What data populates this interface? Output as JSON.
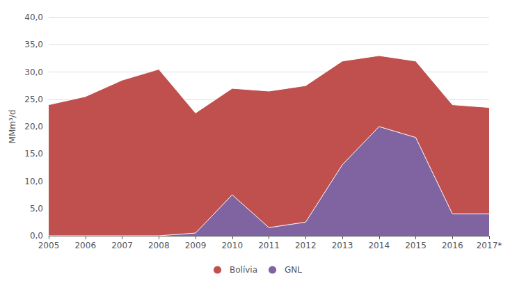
{
  "chart_data": {
    "type": "area",
    "categories": [
      "2005",
      "2006",
      "2007",
      "2008",
      "2009",
      "2010",
      "2011",
      "2012",
      "2013",
      "2014",
      "2015",
      "2016",
      "2017*"
    ],
    "series": [
      {
        "name": "Bolívia",
        "color": "#c0504d",
        "values": [
          24.0,
          25.5,
          28.5,
          30.5,
          22.5,
          27.0,
          26.5,
          27.5,
          32.0,
          33.0,
          32.0,
          24.0,
          23.5
        ]
      },
      {
        "name": "GNL",
        "color": "#8064a2",
        "values": [
          0.0,
          0.0,
          0.0,
          0.0,
          0.5,
          7.5,
          1.5,
          2.5,
          13.0,
          20.0,
          18.0,
          4.0,
          4.0
        ]
      }
    ],
    "ylabel": "MMm³/d",
    "ylim": [
      0,
      40
    ],
    "yticks": [
      {
        "value": 0,
        "label": "0,0"
      },
      {
        "value": 5,
        "label": "5,0"
      },
      {
        "value": 10,
        "label": "10,0"
      },
      {
        "value": 15,
        "label": "15,0"
      },
      {
        "value": 20,
        "label": "20,0"
      },
      {
        "value": 25,
        "label": "25,0"
      },
      {
        "value": 30,
        "label": "30,0"
      },
      {
        "value": 35,
        "label": "35,0"
      },
      {
        "value": 40,
        "label": "40,0"
      }
    ],
    "stacked": false,
    "grid": true,
    "legend": "bottom"
  }
}
